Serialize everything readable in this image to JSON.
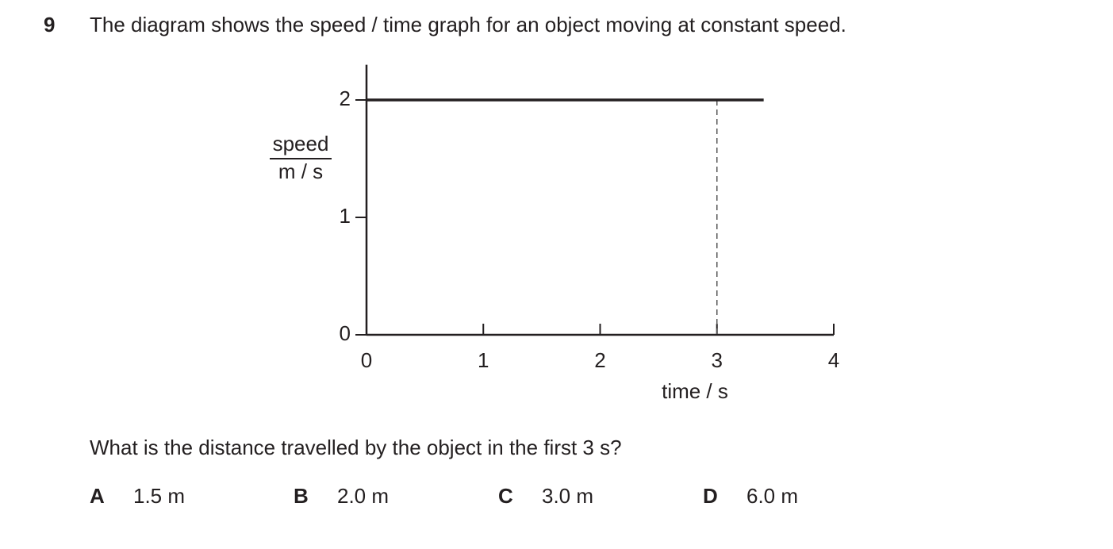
{
  "question": {
    "number": "9",
    "stem": "The diagram shows the speed / time graph for an object moving at constant speed.",
    "prompt": "What is the distance travelled by the object in the first 3 s?",
    "options": [
      {
        "letter": "A",
        "text": "1.5 m"
      },
      {
        "letter": "B",
        "text": "2.0 m"
      },
      {
        "letter": "C",
        "text": "3.0 m"
      },
      {
        "letter": "D",
        "text": "6.0 m"
      }
    ]
  },
  "chart_data": {
    "type": "line",
    "x": [
      0,
      3.4
    ],
    "values": [
      2,
      2
    ],
    "color": "#231f20",
    "xlim": [
      0,
      4
    ],
    "xticks": [
      0,
      1,
      2,
      3,
      4
    ],
    "ylim": [
      0,
      2.3
    ],
    "yticks": [
      0,
      1,
      2
    ],
    "x_label": "time / s",
    "y_label": {
      "quantity": "speed",
      "unit": "m / s"
    },
    "reference_lines": [
      {
        "x": 3,
        "style": "dashed"
      }
    ]
  }
}
